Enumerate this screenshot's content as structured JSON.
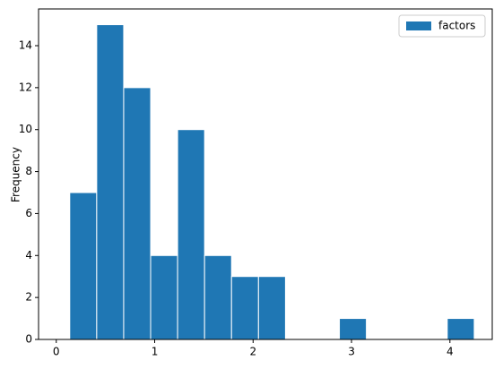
{
  "chart_data": {
    "type": "histogram",
    "y_label": "Frequency",
    "bins": [
      0.137,
      0.411,
      0.685,
      0.959,
      1.233,
      1.507,
      1.781,
      2.055,
      2.329,
      2.603,
      2.877,
      3.151,
      3.425,
      3.699,
      3.973,
      4.247
    ],
    "series": [
      {
        "name": "factors",
        "color": "#1f77b4",
        "values": [
          7,
          15,
          12,
          4,
          10,
          4,
          3,
          3,
          0,
          0,
          1,
          0,
          0,
          0,
          1
        ]
      }
    ],
    "xlim": [
      -0.18,
      4.43
    ],
    "ylim": [
      0,
      15.75
    ],
    "xticks": [
      0,
      1,
      2,
      3,
      4
    ],
    "yticks": [
      0,
      2,
      4,
      6,
      8,
      10,
      12,
      14
    ],
    "legend": "upper right",
    "grid": false
  }
}
